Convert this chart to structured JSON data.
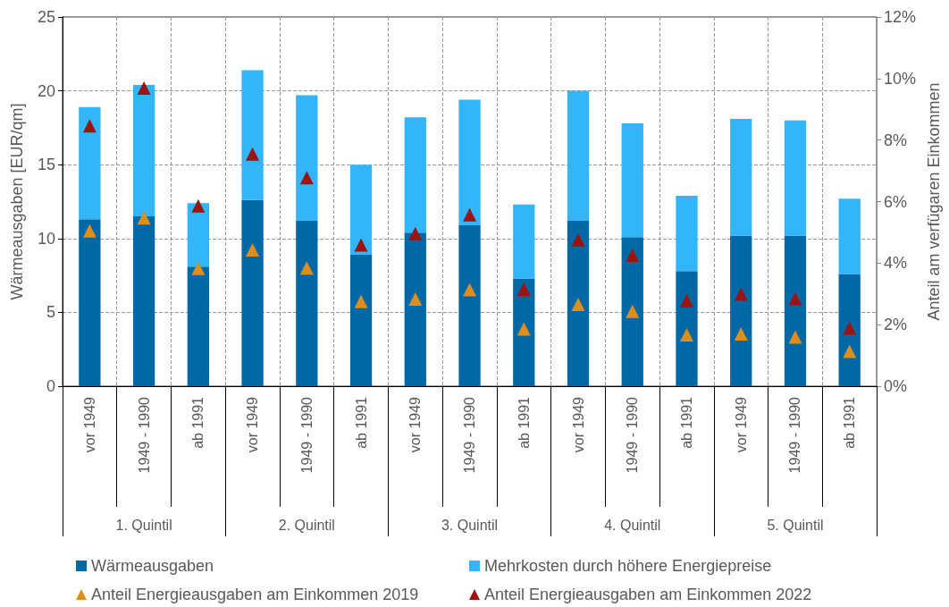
{
  "chart_data": {
    "type": "bar",
    "stacked": true,
    "ylabel": "Wärmeausgaben [EUR/qm]",
    "y2label": "Anteil am verfügaren Einkommen",
    "categories": [
      "vor 1949",
      "1949 - 1990",
      "ab 1991",
      "vor 1949",
      "1949 - 1990",
      "ab 1991",
      "vor 1949",
      "1949 - 1990",
      "ab 1991",
      "vor 1949",
      "1949 - 1990",
      "ab 1991",
      "vor 1949",
      "1949 - 1990",
      "ab 1991"
    ],
    "annotations": [
      "1. Quintil",
      "2. Quintil",
      "3. Quintil",
      "4. Quintil",
      "5. Quintil"
    ],
    "series": [
      {
        "name": "Wärmeausgaben",
        "color": "#0068a5",
        "values": [
          11.3,
          11.5,
          8.1,
          12.6,
          11.2,
          8.9,
          10.4,
          10.9,
          7.3,
          11.2,
          10.1,
          7.8,
          10.2,
          10.2,
          7.6
        ]
      },
      {
        "name": "Mehrkosten durch höhere Energiepreise",
        "color": "#33b5fa",
        "values": [
          7.6,
          8.9,
          4.3,
          8.8,
          8.5,
          6.1,
          7.8,
          8.5,
          5.0,
          8.8,
          7.7,
          5.1,
          7.9,
          7.8,
          5.1
        ]
      },
      {
        "name": "Anteil Energieausgaben am Einkommen 2019",
        "type": "scatter",
        "axis": "y2",
        "color": "#e08e1b",
        "values": [
          5.05,
          5.47,
          3.83,
          4.43,
          3.84,
          2.75,
          2.83,
          3.14,
          1.86,
          2.66,
          2.43,
          1.67,
          1.7,
          1.6,
          1.13
        ]
      },
      {
        "name": "Anteil Energieausgaben am Einkommen 2022",
        "type": "scatter",
        "axis": "y2",
        "color": "#9b1414",
        "values": [
          8.46,
          9.69,
          5.86,
          7.55,
          6.78,
          4.59,
          4.96,
          5.57,
          3.15,
          4.76,
          4.26,
          2.78,
          2.99,
          2.85,
          1.89
        ]
      }
    ],
    "ylim": [
      0,
      25
    ],
    "yticks": [
      0,
      5,
      10,
      15,
      20,
      25
    ],
    "y2lim": [
      0,
      12
    ],
    "y2ticks": [
      {
        "value": 0,
        "label": "0%"
      },
      {
        "value": 2,
        "label": "2%"
      },
      {
        "value": 4,
        "label": "4%"
      },
      {
        "value": 6,
        "label": "6%"
      },
      {
        "value": 8,
        "label": "8%"
      },
      {
        "value": 10,
        "label": "10%"
      },
      {
        "value": 12,
        "label": "12%"
      }
    ],
    "marker": "triangle",
    "grid": true,
    "legend": "bottom"
  }
}
